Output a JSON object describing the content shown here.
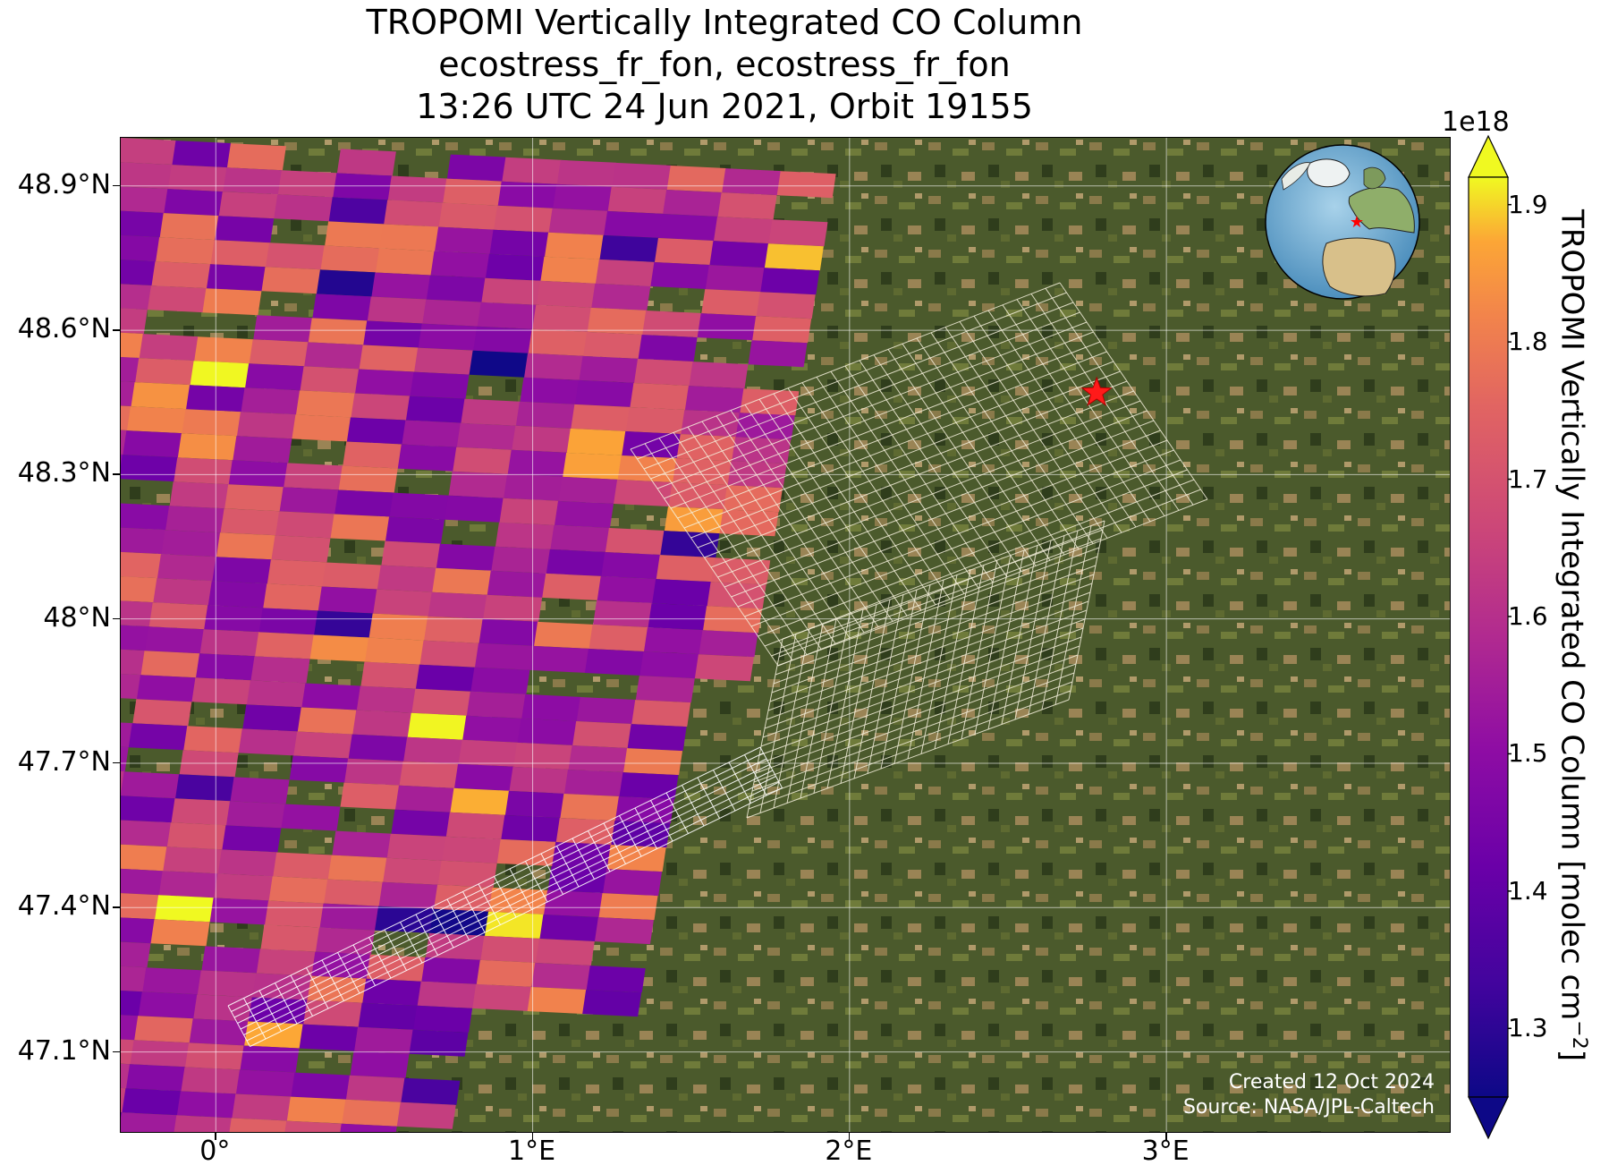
{
  "title": {
    "line1": "TROPOMI Vertically Integrated CO Column",
    "line2": "ecostress_fr_fon, ecostress_fr_fon",
    "line3": "13:26 UTC 24 Jun 2021, Orbit 19155"
  },
  "map": {
    "lon_range": [
      -0.3,
      3.9
    ],
    "lat_range": [
      46.93,
      49.0
    ],
    "x_ticks": [
      {
        "lon": 0,
        "label": "0°"
      },
      {
        "lon": 1,
        "label": "1°E"
      },
      {
        "lon": 2,
        "label": "2°E"
      },
      {
        "lon": 3,
        "label": "3°E"
      }
    ],
    "y_ticks": [
      {
        "lat": 48.9,
        "label": "48.9°N"
      },
      {
        "lat": 48.6,
        "label": "48.6°N"
      },
      {
        "lat": 48.3,
        "label": "48.3°N"
      },
      {
        "lat": 48.0,
        "label": "48°N"
      },
      {
        "lat": 47.7,
        "label": "47.7°N"
      },
      {
        "lat": 47.4,
        "label": "47.4°N"
      },
      {
        "lat": 47.1,
        "label": "47.1°N"
      }
    ],
    "target": {
      "lon": 2.78,
      "lat": 48.47,
      "marker": "red-star"
    },
    "grid": true,
    "background": "satellite-imagery"
  },
  "colorbar": {
    "exponent_label": "1e18",
    "label": "TROPOMI Vertically Integrated CO Column [molec cm",
    "label_superscript": "−2",
    "label_end": "]",
    "range": [
      1.25,
      1.92
    ],
    "ticks": [
      "1.9",
      "1.8",
      "1.7",
      "1.6",
      "1.5",
      "1.4",
      "1.3"
    ],
    "tick_values": [
      1.9,
      1.8,
      1.7,
      1.6,
      1.5,
      1.4,
      1.3
    ],
    "colormap": "plasma",
    "extend": "both"
  },
  "credit": {
    "line1": "Created 12 Oct 2024",
    "line2": "Source: NASA/JPL-Caltech"
  },
  "inset_globe": {
    "marker": "red-star"
  }
}
